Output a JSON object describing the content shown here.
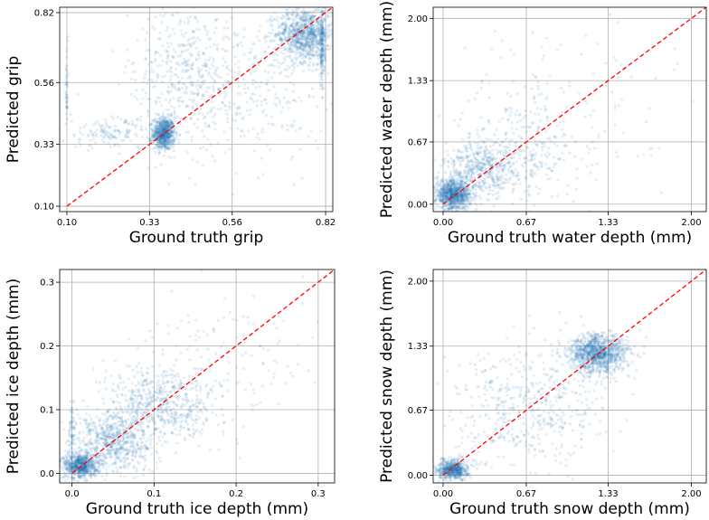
{
  "colors": {
    "points": "#1f77b4",
    "identity_line": "#ff0000"
  },
  "chart_data": [
    {
      "type": "scatter",
      "xlabel": "Ground truth grip",
      "ylabel": "Predicted grip",
      "xlim": [
        0.08,
        0.84
      ],
      "ylim": [
        0.08,
        0.84
      ],
      "xticks": [
        "0.10",
        "0.33",
        "0.56",
        "0.82"
      ],
      "yticks": [
        "0.10",
        "0.33",
        "0.56",
        "0.82"
      ],
      "grid": true,
      "reference_line": "y = x (red dashed)",
      "clusters": [
        {
          "x": 0.37,
          "y": 0.37,
          "sx": 0.015,
          "sy": 0.03,
          "n": 700
        },
        {
          "x": 0.76,
          "y": 0.74,
          "sx": 0.04,
          "sy": 0.05,
          "n": 900
        },
        {
          "x": 0.55,
          "y": 0.55,
          "sx": 0.14,
          "sy": 0.14,
          "n": 500
        },
        {
          "x": 0.42,
          "y": 0.62,
          "sx": 0.06,
          "sy": 0.12,
          "n": 250
        },
        {
          "x": 0.22,
          "y": 0.37,
          "sx": 0.07,
          "sy": 0.03,
          "n": 150
        },
        {
          "x": 0.81,
          "y": 0.7,
          "sx": 0.004,
          "sy": 0.08,
          "n": 200
        },
        {
          "x": 0.1,
          "y": 0.55,
          "sx": 0.002,
          "sy": 0.08,
          "n": 40
        }
      ]
    },
    {
      "type": "scatter",
      "xlabel": "Ground truth water depth (mm)",
      "ylabel": "Predicted water depth (mm)",
      "xlim": [
        -0.08,
        2.12
      ],
      "ylim": [
        -0.08,
        2.12
      ],
      "xticks": [
        "0.00",
        "0.67",
        "1.33",
        "2.00"
      ],
      "yticks": [
        "0.00",
        "0.67",
        "1.33",
        "2.00"
      ],
      "grid": true,
      "reference_line": "y = x (red dashed)",
      "clusters": [
        {
          "x": 0.08,
          "y": 0.1,
          "sx": 0.07,
          "sy": 0.08,
          "n": 900
        },
        {
          "x": 0.3,
          "y": 0.35,
          "sx": 0.15,
          "sy": 0.15,
          "n": 450
        },
        {
          "x": 0.6,
          "y": 0.55,
          "sx": 0.25,
          "sy": 0.25,
          "n": 300
        },
        {
          "x": 0.9,
          "y": 1.0,
          "sx": 0.45,
          "sy": 0.45,
          "n": 160
        }
      ]
    },
    {
      "type": "scatter",
      "xlabel": "Ground truth ice depth (mm)",
      "ylabel": "Predicted ice depth (mm)",
      "xlim": [
        -0.015,
        0.32
      ],
      "ylim": [
        -0.015,
        0.32
      ],
      "xticks": [
        "0.0",
        "0.1",
        "0.2",
        "0.3"
      ],
      "yticks": [
        "0.0",
        "0.1",
        "0.2",
        "0.3"
      ],
      "grid": true,
      "reference_line": "y = x (red dashed)",
      "clusters": [
        {
          "x": 0.01,
          "y": 0.012,
          "sx": 0.01,
          "sy": 0.01,
          "n": 700
        },
        {
          "x": 0.05,
          "y": 0.05,
          "sx": 0.025,
          "sy": 0.025,
          "n": 700
        },
        {
          "x": 0.11,
          "y": 0.11,
          "sx": 0.035,
          "sy": 0.03,
          "n": 600
        },
        {
          "x": 0.2,
          "y": 0.17,
          "sx": 0.05,
          "sy": 0.05,
          "n": 120
        },
        {
          "x": 0.0,
          "y": 0.07,
          "sx": 0.002,
          "sy": 0.03,
          "n": 60
        }
      ]
    },
    {
      "type": "scatter",
      "xlabel": "Ground truth snow depth (mm)",
      "ylabel": "Predicted snow depth (mm)",
      "xlim": [
        -0.08,
        2.12
      ],
      "ylim": [
        -0.08,
        2.12
      ],
      "xticks": [
        "0.00",
        "0.67",
        "1.33",
        "2.00"
      ],
      "yticks": [
        "0.00",
        "0.67",
        "1.33",
        "2.00"
      ],
      "grid": true,
      "reference_line": "y = x (red dashed)",
      "clusters": [
        {
          "x": 0.08,
          "y": 0.06,
          "sx": 0.06,
          "sy": 0.05,
          "n": 600
        },
        {
          "x": 1.25,
          "y": 1.25,
          "sx": 0.12,
          "sy": 0.1,
          "n": 1100
        },
        {
          "x": 0.7,
          "y": 0.7,
          "sx": 0.3,
          "sy": 0.3,
          "n": 500
        }
      ]
    }
  ]
}
